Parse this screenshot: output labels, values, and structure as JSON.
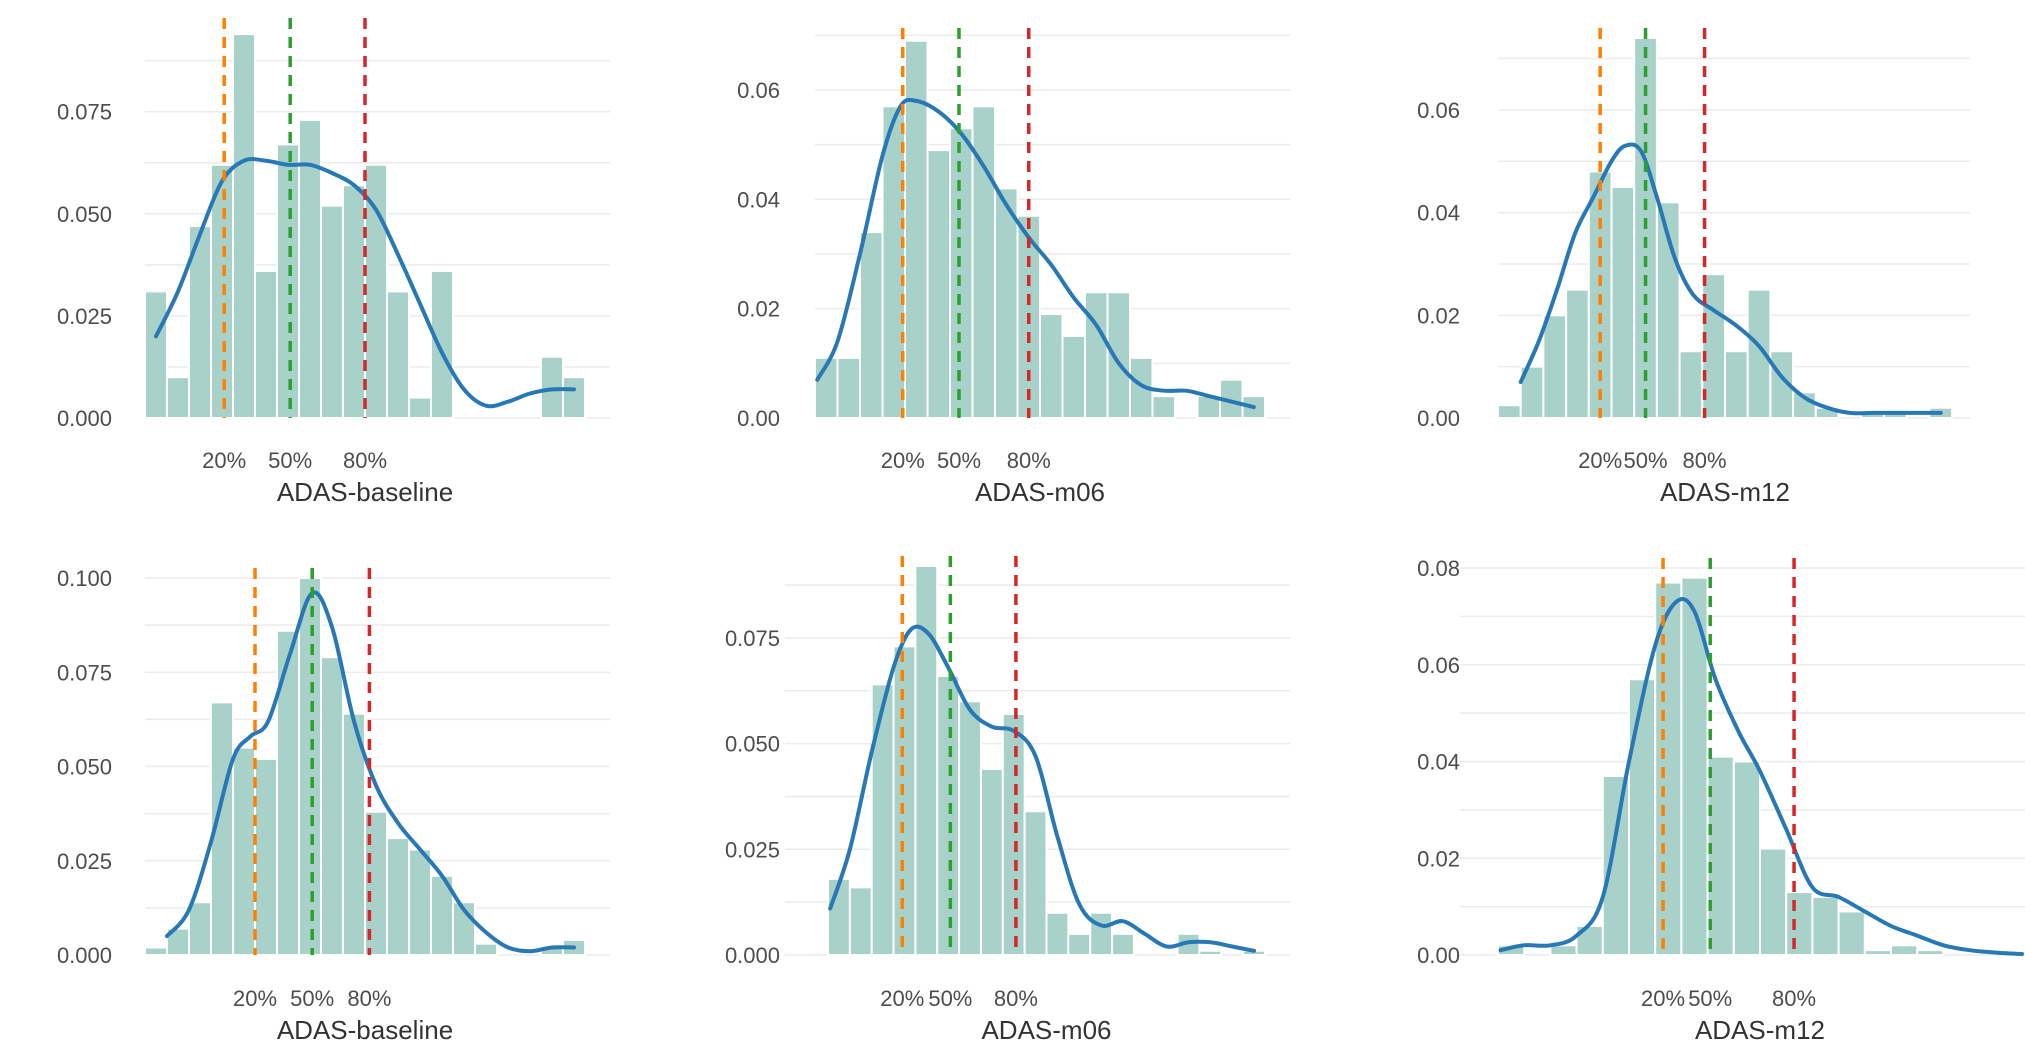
{
  "colors": {
    "bar_fill": "#a8d1c9",
    "density": "#2878b5",
    "q20": "#ff8000",
    "q50": "#2ca02c",
    "q80": "#d62728",
    "grid": "#ebebeb"
  },
  "chart_data": [
    {
      "type": "bar",
      "subtype": "histogram-with-density",
      "xlabel": "ADAS-baseline",
      "ylim": [
        0,
        0.0955
      ],
      "yticks": [
        0,
        0.025,
        0.05,
        0.075
      ],
      "ytick_labels": [
        "0.000",
        "0.025",
        "0.050",
        "0.075"
      ],
      "bins": 20,
      "values": [
        0.031,
        0.01,
        0.047,
        0.062,
        0.094,
        0.036,
        0.067,
        0.073,
        0.052,
        0.057,
        0.062,
        0.031,
        0.005,
        0.036,
        0,
        0,
        0,
        0,
        0.015,
        0.01
      ],
      "density_x": [
        0.5,
        1.5,
        2.5,
        3.5,
        4.5,
        5.5,
        6.5,
        7.5,
        8.5,
        9.5,
        10.5,
        11.5,
        12.5,
        13.5,
        14.5,
        15.5,
        16.5,
        17.5,
        18.5,
        19.5
      ],
      "density_y": [
        0.02,
        0.031,
        0.045,
        0.058,
        0.063,
        0.063,
        0.062,
        0.062,
        0.06,
        0.057,
        0.051,
        0.04,
        0.028,
        0.016,
        0.007,
        0.003,
        0.004,
        0.006,
        0.007,
        0.007
      ],
      "quantiles": [
        {
          "label": "20%",
          "bin_pos": 3.6
        },
        {
          "label": "50%",
          "bin_pos": 6.6
        },
        {
          "label": "80%",
          "bin_pos": 10.0
        }
      ]
    },
    {
      "type": "bar",
      "subtype": "histogram-with-density",
      "xlabel": "ADAS-m06",
      "ylim": [
        0,
        0.0695
      ],
      "yticks": [
        0,
        0.02,
        0.04,
        0.06
      ],
      "ytick_labels": [
        "0.00",
        "0.02",
        "0.04",
        "0.06"
      ],
      "bins": 20,
      "values": [
        0.011,
        0.011,
        0.034,
        0.057,
        0.069,
        0.049,
        0.053,
        0.057,
        0.042,
        0.037,
        0.019,
        0.015,
        0.023,
        0.023,
        0.011,
        0.004,
        0,
        0.004,
        0.007,
        0.004
      ],
      "density_x": [
        0.1,
        1.0,
        2.0,
        3.0,
        3.8,
        4.5,
        5.5,
        6.5,
        7.5,
        8.5,
        9.5,
        10.5,
        11.5,
        12.5,
        13.5,
        14.5,
        15.5,
        16.5,
        17.5,
        18.5,
        19.5
      ],
      "density_y": [
        0.007,
        0.014,
        0.03,
        0.048,
        0.057,
        0.058,
        0.056,
        0.052,
        0.046,
        0.039,
        0.033,
        0.028,
        0.022,
        0.017,
        0.01,
        0.006,
        0.005,
        0.005,
        0.004,
        0.003,
        0.002
      ],
      "quantiles": [
        {
          "label": "20%",
          "bin_pos": 3.9
        },
        {
          "label": "50%",
          "bin_pos": 6.4
        },
        {
          "label": "80%",
          "bin_pos": 9.5
        }
      ]
    },
    {
      "type": "bar",
      "subtype": "histogram-with-density",
      "xlabel": "ADAS-m12",
      "ylim": [
        0,
        0.074
      ],
      "yticks": [
        0,
        0.02,
        0.04,
        0.06
      ],
      "ytick_labels": [
        "0.00",
        "0.02",
        "0.04",
        "0.06"
      ],
      "bins": 20,
      "values": [
        0.0025,
        0.01,
        0.02,
        0.025,
        0.048,
        0.045,
        0.074,
        0.042,
        0.013,
        0.028,
        0.013,
        0.025,
        0.013,
        0.005,
        0.002,
        0,
        0.001,
        0.001,
        0,
        0.002
      ],
      "density_x": [
        1.0,
        1.8,
        2.6,
        3.4,
        4.2,
        5.0,
        5.6,
        6.3,
        7.0,
        7.8,
        8.6,
        9.5,
        10.5,
        11.5,
        12.5,
        13.5,
        14.5,
        15.5,
        16.5,
        17.5,
        18.5,
        19.5
      ],
      "density_y": [
        0.007,
        0.015,
        0.025,
        0.036,
        0.043,
        0.05,
        0.053,
        0.052,
        0.043,
        0.031,
        0.024,
        0.021,
        0.018,
        0.014,
        0.008,
        0.004,
        0.002,
        0.001,
        0.001,
        0.001,
        0.001,
        0.001
      ],
      "quantiles": [
        {
          "label": "20%",
          "bin_pos": 4.5
        },
        {
          "label": "50%",
          "bin_pos": 6.5
        },
        {
          "label": "80%",
          "bin_pos": 9.1
        }
      ]
    },
    {
      "type": "bar",
      "subtype": "histogram-with-density",
      "xlabel": "ADAS-baseline",
      "ylim": [
        0,
        0.1
      ],
      "yticks": [
        0,
        0.025,
        0.05,
        0.075,
        0.1
      ],
      "ytick_labels": [
        "0.000",
        "0.025",
        "0.050",
        "0.075",
        "0.100"
      ],
      "bins": 20,
      "values": [
        0.002,
        0.007,
        0.014,
        0.067,
        0.055,
        0.052,
        0.086,
        0.1,
        0.079,
        0.064,
        0.038,
        0.031,
        0.028,
        0.021,
        0.014,
        0.003,
        0,
        0,
        0.002,
        0.004
      ],
      "density_x": [
        1.0,
        2.0,
        3.0,
        4.0,
        4.8,
        5.6,
        6.6,
        7.6,
        8.5,
        9.5,
        10.5,
        11.5,
        12.5,
        13.5,
        14.5,
        15.5,
        16.5,
        17.5,
        18.5,
        19.5
      ],
      "density_y": [
        0.005,
        0.012,
        0.03,
        0.052,
        0.058,
        0.062,
        0.08,
        0.096,
        0.087,
        0.062,
        0.045,
        0.035,
        0.028,
        0.021,
        0.012,
        0.006,
        0.002,
        0.001,
        0.002,
        0.002
      ],
      "quantiles": [
        {
          "label": "20%",
          "bin_pos": 5.0
        },
        {
          "label": "50%",
          "bin_pos": 7.6
        },
        {
          "label": "80%",
          "bin_pos": 10.2
        }
      ]
    },
    {
      "type": "bar",
      "subtype": "histogram-with-density",
      "xlabel": "ADAS-m06",
      "ylim": [
        0,
        0.092
      ],
      "yticks": [
        0,
        0.025,
        0.05,
        0.075
      ],
      "ytick_labels": [
        "0.000",
        "0.025",
        "0.050",
        "0.075"
      ],
      "bins": 20,
      "values": [
        0.018,
        0.016,
        0.064,
        0.073,
        0.092,
        0.066,
        0.06,
        0.044,
        0.057,
        0.034,
        0.01,
        0.005,
        0.01,
        0.005,
        0,
        0,
        0.005,
        0.001,
        0,
        0.001
      ],
      "density_x": [
        0.1,
        1.0,
        2.0,
        3.0,
        3.8,
        4.6,
        5.5,
        6.5,
        7.5,
        8.5,
        9.5,
        10.5,
        11.5,
        12.5,
        13.5,
        14.5,
        15.5,
        16.5,
        17.5,
        18.5,
        19.5
      ],
      "density_y": [
        0.011,
        0.025,
        0.048,
        0.068,
        0.077,
        0.076,
        0.068,
        0.058,
        0.054,
        0.053,
        0.047,
        0.028,
        0.012,
        0.007,
        0.008,
        0.005,
        0.002,
        0.003,
        0.003,
        0.002,
        0.001
      ],
      "quantiles": [
        {
          "label": "20%",
          "bin_pos": 3.4
        },
        {
          "label": "50%",
          "bin_pos": 5.6
        },
        {
          "label": "80%",
          "bin_pos": 8.6
        }
      ]
    },
    {
      "type": "bar",
      "subtype": "histogram-with-density",
      "xlabel": "ADAS-m12",
      "ylim": [
        0,
        0.08
      ],
      "yticks": [
        0,
        0.02,
        0.04,
        0.06,
        0.08
      ],
      "ytick_labels": [
        "0.00",
        "0.02",
        "0.04",
        "0.06",
        "0.08"
      ],
      "bins": 20,
      "values": [
        0.002,
        0,
        0.002,
        0.006,
        0.037,
        0.057,
        0.077,
        0.078,
        0.041,
        0.04,
        0.022,
        0.013,
        0.012,
        0.009,
        0.001,
        0.002,
        0.001,
        0,
        0,
        0
      ],
      "density_x": [
        0.1,
        1.0,
        2.0,
        3.0,
        4.0,
        5.0,
        6.0,
        6.8,
        7.5,
        8.3,
        9.2,
        10.0,
        11.0,
        12.0,
        13.0,
        14.0,
        15.0,
        16.0,
        17.0,
        18.0,
        19.0,
        20.0
      ],
      "density_y": [
        0.001,
        0.002,
        0.002,
        0.004,
        0.012,
        0.04,
        0.064,
        0.073,
        0.071,
        0.057,
        0.046,
        0.038,
        0.026,
        0.014,
        0.012,
        0.009,
        0.006,
        0.004,
        0.002,
        0.001,
        0.0005,
        0.0002
      ],
      "quantiles": [
        {
          "label": "20%",
          "bin_pos": 6.3
        },
        {
          "label": "50%",
          "bin_pos": 8.1
        },
        {
          "label": "80%",
          "bin_pos": 11.3
        }
      ]
    }
  ]
}
